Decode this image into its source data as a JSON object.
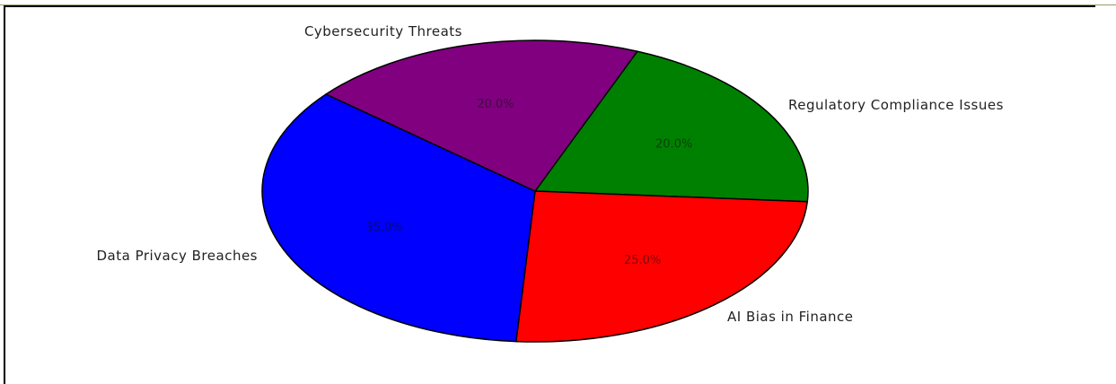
{
  "chart_data": {
    "type": "pie",
    "title": "",
    "slices": [
      {
        "label": "Regulatory Compliance Issues",
        "value": 20.0,
        "pct_label": "20.0%",
        "color": "#008000"
      },
      {
        "label": "AI Bias in Finance",
        "value": 25.0,
        "pct_label": "25.0%",
        "color": "#ff0000"
      },
      {
        "label": "Data Privacy Breaches",
        "value": 35.0,
        "pct_label": "35.0%",
        "color": "#0000ff"
      },
      {
        "label": "Cybersecurity Threats",
        "value": 20.0,
        "pct_label": "20.0%",
        "color": "#800080"
      }
    ],
    "edge_color": "#000000"
  }
}
